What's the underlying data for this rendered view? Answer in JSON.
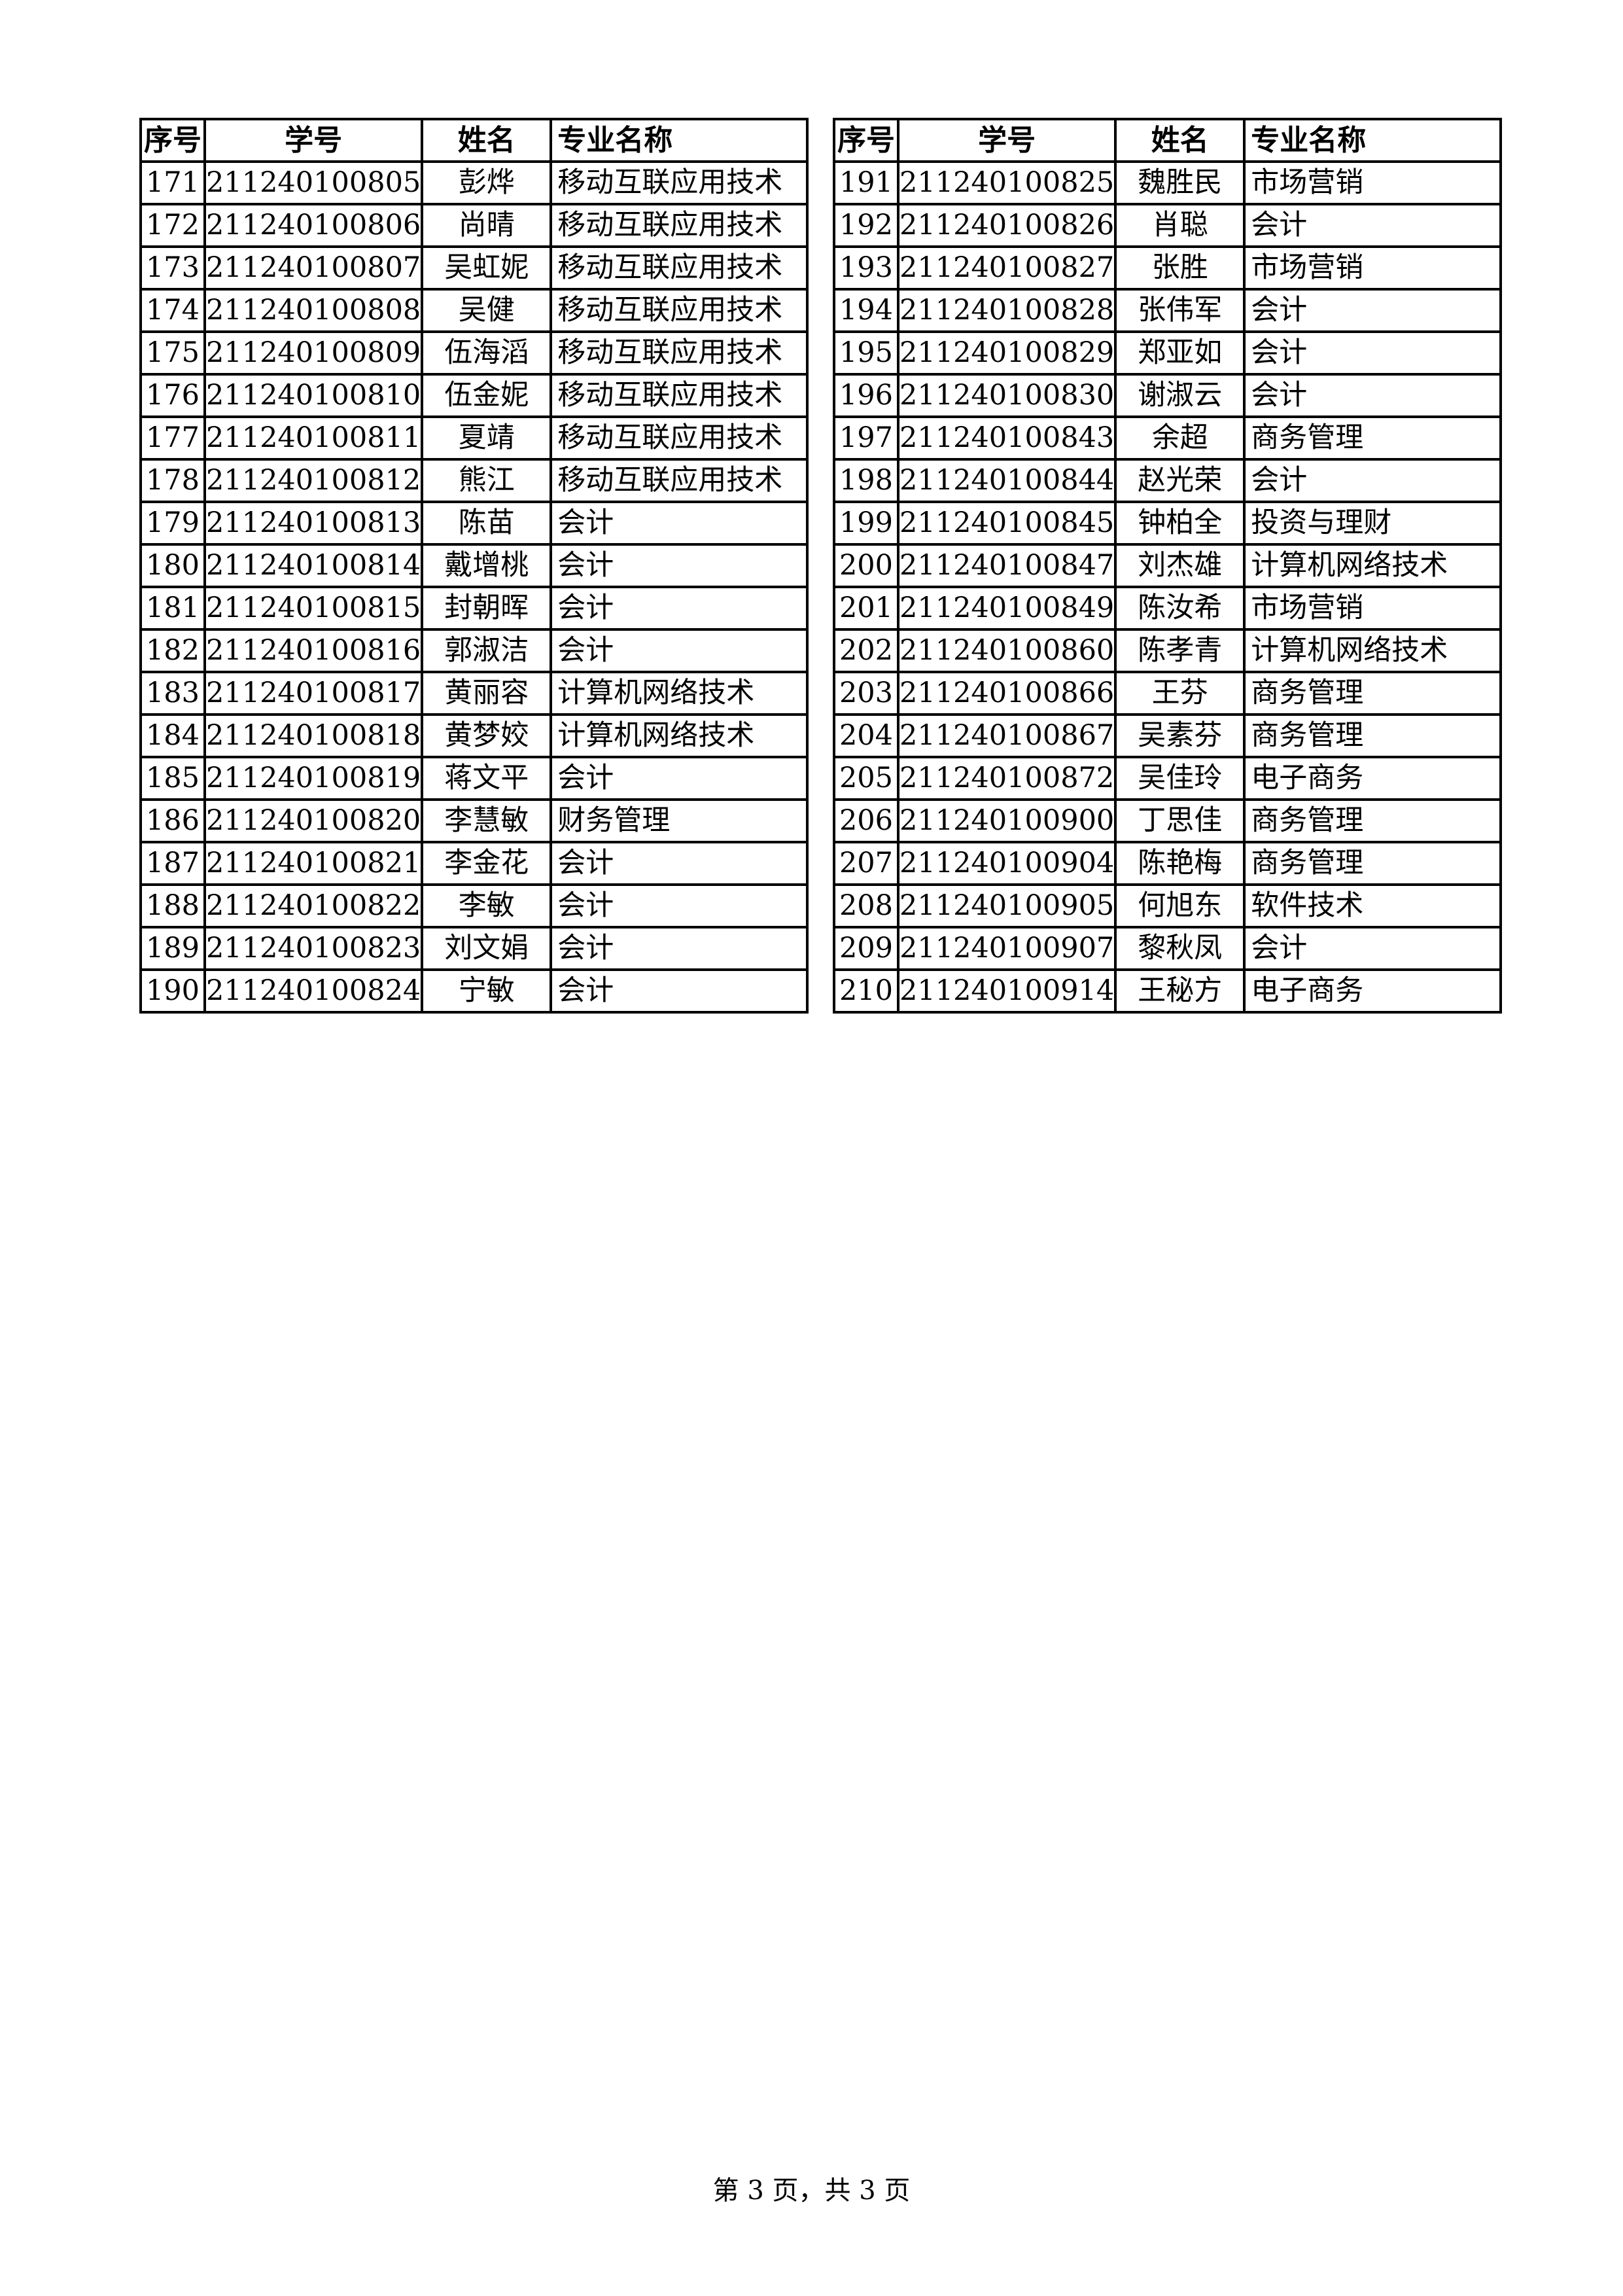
{
  "headers": {
    "no": "序号",
    "id": "学号",
    "name": "姓名",
    "major": "专业名称"
  },
  "tables": [
    {
      "rows": [
        {
          "no": "171",
          "id": "211240100805",
          "name": "彭烨",
          "major": "移动互联应用技术"
        },
        {
          "no": "172",
          "id": "211240100806",
          "name": "尚晴",
          "major": "移动互联应用技术"
        },
        {
          "no": "173",
          "id": "211240100807",
          "name": "吴虹妮",
          "major": "移动互联应用技术"
        },
        {
          "no": "174",
          "id": "211240100808",
          "name": "吴健",
          "major": "移动互联应用技术"
        },
        {
          "no": "175",
          "id": "211240100809",
          "name": "伍海滔",
          "major": "移动互联应用技术"
        },
        {
          "no": "176",
          "id": "211240100810",
          "name": "伍金妮",
          "major": "移动互联应用技术"
        },
        {
          "no": "177",
          "id": "211240100811",
          "name": "夏靖",
          "major": "移动互联应用技术"
        },
        {
          "no": "178",
          "id": "211240100812",
          "name": "熊江",
          "major": "移动互联应用技术"
        },
        {
          "no": "179",
          "id": "211240100813",
          "name": "陈苗",
          "major": "会计"
        },
        {
          "no": "180",
          "id": "211240100814",
          "name": "戴增桃",
          "major": "会计"
        },
        {
          "no": "181",
          "id": "211240100815",
          "name": "封朝晖",
          "major": "会计"
        },
        {
          "no": "182",
          "id": "211240100816",
          "name": "郭淑洁",
          "major": "会计"
        },
        {
          "no": "183",
          "id": "211240100817",
          "name": "黄丽容",
          "major": "计算机网络技术"
        },
        {
          "no": "184",
          "id": "211240100818",
          "name": "黄梦姣",
          "major": "计算机网络技术"
        },
        {
          "no": "185",
          "id": "211240100819",
          "name": "蒋文平",
          "major": "会计"
        },
        {
          "no": "186",
          "id": "211240100820",
          "name": "李慧敏",
          "major": "财务管理"
        },
        {
          "no": "187",
          "id": "211240100821",
          "name": "李金花",
          "major": "会计"
        },
        {
          "no": "188",
          "id": "211240100822",
          "name": "李敏",
          "major": "会计"
        },
        {
          "no": "189",
          "id": "211240100823",
          "name": "刘文娟",
          "major": "会计"
        },
        {
          "no": "190",
          "id": "211240100824",
          "name": "宁敏",
          "major": "会计"
        }
      ]
    },
    {
      "rows": [
        {
          "no": "191",
          "id": "211240100825",
          "name": "魏胜民",
          "major": "市场营销"
        },
        {
          "no": "192",
          "id": "211240100826",
          "name": "肖聪",
          "major": "会计"
        },
        {
          "no": "193",
          "id": "211240100827",
          "name": "张胜",
          "major": "市场营销"
        },
        {
          "no": "194",
          "id": "211240100828",
          "name": "张伟军",
          "major": "会计"
        },
        {
          "no": "195",
          "id": "211240100829",
          "name": "郑亚如",
          "major": "会计"
        },
        {
          "no": "196",
          "id": "211240100830",
          "name": "谢淑云",
          "major": "会计"
        },
        {
          "no": "197",
          "id": "211240100843",
          "name": "余超",
          "major": "商务管理"
        },
        {
          "no": "198",
          "id": "211240100844",
          "name": "赵光荣",
          "major": "会计"
        },
        {
          "no": "199",
          "id": "211240100845",
          "name": "钟柏全",
          "major": "投资与理财"
        },
        {
          "no": "200",
          "id": "211240100847",
          "name": "刘杰雄",
          "major": "计算机网络技术"
        },
        {
          "no": "201",
          "id": "211240100849",
          "name": "陈汝希",
          "major": "市场营销"
        },
        {
          "no": "202",
          "id": "211240100860",
          "name": "陈孝青",
          "major": "计算机网络技术"
        },
        {
          "no": "203",
          "id": "211240100866",
          "name": "王芬",
          "major": "商务管理"
        },
        {
          "no": "204",
          "id": "211240100867",
          "name": "吴素芬",
          "major": "商务管理"
        },
        {
          "no": "205",
          "id": "211240100872",
          "name": "吴佳玲",
          "major": "电子商务"
        },
        {
          "no": "206",
          "id": "211240100900",
          "name": "丁思佳",
          "major": "商务管理"
        },
        {
          "no": "207",
          "id": "211240100904",
          "name": "陈艳梅",
          "major": "商务管理"
        },
        {
          "no": "208",
          "id": "211240100905",
          "name": "何旭东",
          "major": "软件技术"
        },
        {
          "no": "209",
          "id": "211240100907",
          "name": "黎秋凤",
          "major": "会计"
        },
        {
          "no": "210",
          "id": "211240100914",
          "name": "王秘方",
          "major": "电子商务"
        }
      ]
    }
  ],
  "footer": "第 3 页，共 3 页"
}
